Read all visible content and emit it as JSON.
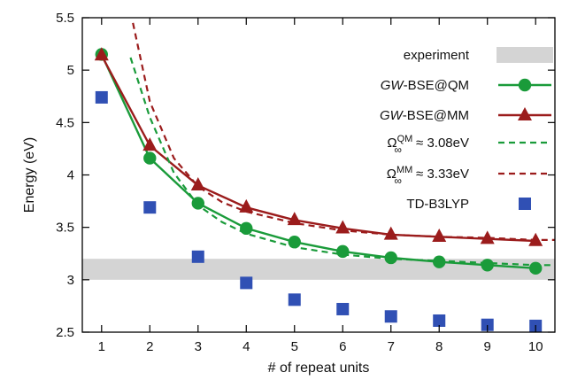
{
  "chart_data": {
    "type": "line",
    "xlabel": "# of repeat units",
    "ylabel": "Energy (eV)",
    "xlim": [
      0.6,
      10.4
    ],
    "ylim": [
      2.5,
      5.5
    ],
    "x_ticks": [
      1,
      2,
      3,
      4,
      5,
      6,
      7,
      8,
      9,
      10
    ],
    "x_tick_labels": [
      "1",
      "2",
      "3",
      "4",
      "5",
      "6",
      "7",
      "8",
      "9",
      "10"
    ],
    "y_ticks": [
      2.5,
      3,
      3.5,
      4,
      4.5,
      5,
      5.5
    ],
    "y_tick_labels": [
      "2.5",
      "3",
      "3.5",
      "4",
      "4.5",
      "5",
      "5.5"
    ],
    "grid": false,
    "legend_position": "right",
    "experiment_band": {
      "label": "experiment",
      "y_range": [
        3.0,
        3.2
      ],
      "color": "#d4d4d4"
    },
    "series": [
      {
        "key": "gw_qm",
        "name_italic": "GW",
        "name_rest": "-BSE@QM",
        "style": "line-circle",
        "color": "#1a9b3a",
        "x": [
          1,
          2,
          3,
          4,
          5,
          6,
          7,
          8,
          9,
          10
        ],
        "values": [
          5.15,
          4.16,
          3.73,
          3.49,
          3.36,
          3.27,
          3.21,
          3.17,
          3.14,
          3.11
        ]
      },
      {
        "key": "gw_mm",
        "name_italic": "GW",
        "name_rest": "-BSE@MM",
        "style": "line-triangle",
        "color": "#9b1c1c",
        "x": [
          1,
          2,
          3,
          4,
          5,
          6,
          7,
          8,
          9,
          10
        ],
        "values": [
          5.14,
          4.28,
          3.9,
          3.69,
          3.57,
          3.49,
          3.43,
          3.41,
          3.39,
          3.37
        ]
      },
      {
        "key": "fit_qm",
        "name_symbol": "Ω",
        "name_sup": "QM",
        "name_sub": "∞",
        "name_rest": "≈ 3.08eV",
        "style": "dashed",
        "color": "#1a9b3a",
        "x": [
          1.6,
          2,
          2.5,
          3,
          3.5,
          4,
          5,
          6,
          7,
          8,
          9,
          10,
          10.4
        ],
        "values": [
          5.12,
          4.55,
          4.02,
          3.71,
          3.55,
          3.44,
          3.31,
          3.24,
          3.2,
          3.18,
          3.16,
          3.14,
          3.14
        ]
      },
      {
        "key": "fit_mm",
        "name_symbol": "Ω",
        "name_sup": "MM",
        "name_sub": "∞",
        "name_rest": "≈ 3.33eV",
        "style": "dashed",
        "color": "#9b1c1c",
        "x": [
          1.65,
          2,
          2.5,
          3,
          3.5,
          4,
          5,
          6,
          7,
          8,
          9,
          10,
          10.4
        ],
        "values": [
          5.45,
          4.7,
          4.16,
          3.89,
          3.74,
          3.65,
          3.54,
          3.47,
          3.43,
          3.41,
          3.4,
          3.38,
          3.38
        ]
      },
      {
        "key": "td_b3lyp",
        "name_rest": "TD-B3LYP",
        "style": "square",
        "color": "#3050b4",
        "x": [
          1,
          2,
          3,
          4,
          5,
          6,
          7,
          8,
          9,
          10
        ],
        "values": [
          4.74,
          3.69,
          3.22,
          2.97,
          2.81,
          2.72,
          2.65,
          2.61,
          2.57,
          2.56
        ]
      }
    ]
  }
}
